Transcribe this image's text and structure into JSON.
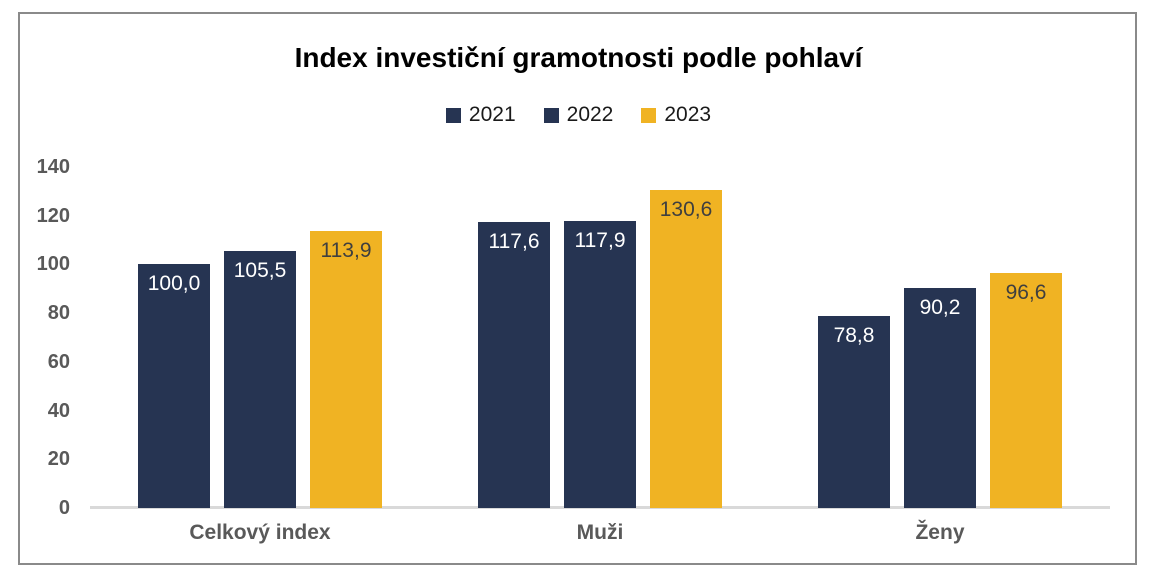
{
  "chart_data": {
    "type": "bar",
    "title": "Index investiční gramotnosti podle pohlaví",
    "categories": [
      "Celkový index",
      "Muži",
      "Ženy"
    ],
    "series": [
      {
        "name": "2021",
        "color": "#263452",
        "label_color": "#FFFFFF",
        "values": [
          100.0,
          117.6,
          78.8
        ],
        "labels": [
          "100,0",
          "117,6",
          "78,8"
        ]
      },
      {
        "name": "2022",
        "color": "#263452",
        "label_color": "#FFFFFF",
        "values": [
          105.5,
          117.9,
          90.2
        ],
        "labels": [
          "105,5",
          "117,9",
          "90,2"
        ]
      },
      {
        "name": "2023",
        "color": "#F0B323",
        "label_color": "#3F3F3F",
        "values": [
          113.9,
          130.6,
          96.6
        ],
        "labels": [
          "113,9",
          "130,6",
          "96,6"
        ]
      }
    ],
    "xlabel": "",
    "ylabel": "",
    "ylim": [
      0,
      140
    ],
    "yticks": [
      0,
      20,
      40,
      60,
      80,
      100,
      120,
      140
    ],
    "legend_position": "top",
    "grid": false,
    "value_labels_position": "inside-top"
  },
  "colors": {
    "background": "#FFFFFF",
    "frame_border": "#8A8A8A",
    "axis_tick_label": "#595959",
    "category_label": "#595959",
    "baseline": "#D9D9D9",
    "title_text": "#000000",
    "legend_text": "#1A1A1A",
    "series_navy": "#263452",
    "series_gold": "#F0B323"
  }
}
